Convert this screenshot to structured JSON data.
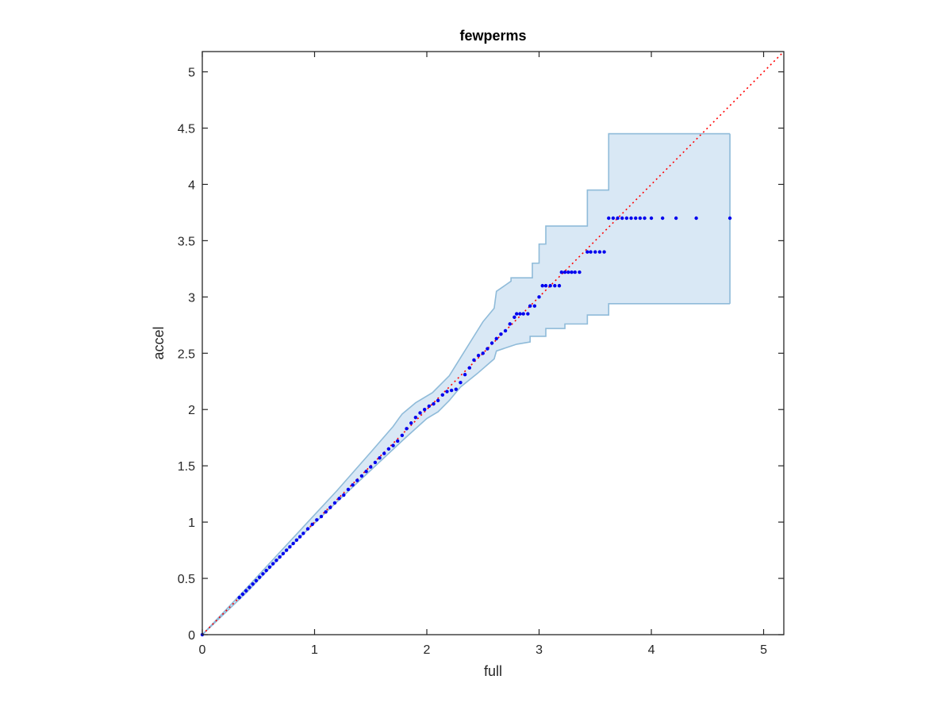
{
  "chart_data": {
    "type": "scatter",
    "title": "fewperms",
    "xlabel": "full",
    "ylabel": "accel",
    "xlim": [
      0,
      5.18
    ],
    "ylim": [
      0,
      5.18
    ],
    "xticks": [
      0,
      1,
      2,
      3,
      4,
      5
    ],
    "yticks": [
      0,
      0.5,
      1,
      1.5,
      2,
      2.5,
      3,
      3.5,
      4,
      4.5,
      5
    ],
    "x_tick_labels": [
      "0",
      "1",
      "2",
      "3",
      "4",
      "5"
    ],
    "y_tick_labels": [
      "0",
      "0.5",
      "1",
      "1.5",
      "2",
      "2.5",
      "3",
      "3.5",
      "4",
      "4.5",
      "5"
    ],
    "grid": false,
    "reference_line": {
      "from": [
        0,
        0
      ],
      "to": [
        5.18,
        5.18
      ],
      "style": "dotted",
      "color": "#ff0000"
    },
    "band": {
      "color": "#d9e8f5",
      "edge_color": "#8fbbd9",
      "upper": [
        [
          0,
          0
        ],
        [
          0.4,
          0.42
        ],
        [
          0.8,
          0.85
        ],
        [
          1.2,
          1.28
        ],
        [
          1.5,
          1.62
        ],
        [
          1.7,
          1.85
        ],
        [
          1.75,
          1.92
        ],
        [
          1.78,
          1.96
        ],
        [
          1.9,
          2.06
        ],
        [
          2.05,
          2.15
        ],
        [
          2.2,
          2.3
        ],
        [
          2.3,
          2.46
        ],
        [
          2.4,
          2.62
        ],
        [
          2.5,
          2.78
        ],
        [
          2.6,
          2.9
        ],
        [
          2.62,
          3.05
        ],
        [
          2.75,
          3.14
        ],
        [
          2.75,
          3.17
        ],
        [
          2.94,
          3.17
        ],
        [
          2.94,
          3.3
        ],
        [
          3.0,
          3.3
        ],
        [
          3.0,
          3.47
        ],
        [
          3.06,
          3.47
        ],
        [
          3.06,
          3.63
        ],
        [
          3.43,
          3.63
        ],
        [
          3.43,
          3.95
        ],
        [
          3.62,
          3.95
        ],
        [
          3.62,
          4.45
        ],
        [
          4.7,
          4.45
        ]
      ],
      "lower": [
        [
          0,
          0
        ],
        [
          0.4,
          0.38
        ],
        [
          0.8,
          0.8
        ],
        [
          1.2,
          1.18
        ],
        [
          1.5,
          1.46
        ],
        [
          1.8,
          1.74
        ],
        [
          2.0,
          1.92
        ],
        [
          2.1,
          1.98
        ],
        [
          2.2,
          2.08
        ],
        [
          2.3,
          2.2
        ],
        [
          2.45,
          2.32
        ],
        [
          2.6,
          2.45
        ],
        [
          2.62,
          2.52
        ],
        [
          2.8,
          2.58
        ],
        [
          2.92,
          2.6
        ],
        [
          2.92,
          2.65
        ],
        [
          3.06,
          2.65
        ],
        [
          3.06,
          2.72
        ],
        [
          3.23,
          2.72
        ],
        [
          3.23,
          2.76
        ],
        [
          3.43,
          2.76
        ],
        [
          3.43,
          2.84
        ],
        [
          3.62,
          2.84
        ],
        [
          3.62,
          2.94
        ],
        [
          4.7,
          2.94
        ]
      ]
    },
    "series": [
      {
        "color": "#0000ee",
        "x": [
          0.0,
          0.33,
          0.36,
          0.39,
          0.42,
          0.45,
          0.48,
          0.51,
          0.54,
          0.57,
          0.6,
          0.63,
          0.66,
          0.69,
          0.72,
          0.75,
          0.78,
          0.81,
          0.84,
          0.87,
          0.9,
          0.94,
          0.98,
          1.02,
          1.06,
          1.1,
          1.14,
          1.18,
          1.22,
          1.26,
          1.3,
          1.34,
          1.38,
          1.42,
          1.46,
          1.5,
          1.54,
          1.58,
          1.62,
          1.66,
          1.7,
          1.74,
          1.78,
          1.82,
          1.86,
          1.9,
          1.94,
          1.98,
          2.02,
          2.06,
          2.1,
          2.14,
          2.18,
          2.22,
          2.26,
          2.3,
          2.34,
          2.38,
          2.42,
          2.46,
          2.5,
          2.54,
          2.58,
          2.62,
          2.66,
          2.7,
          2.74,
          2.78,
          2.8,
          2.83,
          2.86,
          2.9,
          2.92,
          2.96,
          3.0,
          3.03,
          3.06,
          3.1,
          3.14,
          3.18,
          3.2,
          3.23,
          3.26,
          3.29,
          3.32,
          3.36,
          3.43,
          3.46,
          3.5,
          3.54,
          3.58,
          3.62,
          3.66,
          3.7,
          3.74,
          3.78,
          3.82,
          3.86,
          3.9,
          3.94,
          4.0,
          4.1,
          4.22,
          4.4,
          4.7
        ],
        "y": [
          0.0,
          0.33,
          0.36,
          0.39,
          0.42,
          0.45,
          0.48,
          0.51,
          0.54,
          0.57,
          0.6,
          0.63,
          0.66,
          0.69,
          0.72,
          0.75,
          0.78,
          0.81,
          0.84,
          0.87,
          0.9,
          0.94,
          0.98,
          1.02,
          1.05,
          1.09,
          1.13,
          1.17,
          1.21,
          1.24,
          1.29,
          1.33,
          1.37,
          1.41,
          1.45,
          1.49,
          1.53,
          1.57,
          1.61,
          1.65,
          1.68,
          1.72,
          1.77,
          1.83,
          1.88,
          1.93,
          1.97,
          2.0,
          2.03,
          2.05,
          2.08,
          2.13,
          2.16,
          2.17,
          2.18,
          2.24,
          2.31,
          2.37,
          2.44,
          2.48,
          2.5,
          2.54,
          2.59,
          2.63,
          2.67,
          2.7,
          2.76,
          2.82,
          2.85,
          2.85,
          2.85,
          2.85,
          2.92,
          2.92,
          3.0,
          3.1,
          3.1,
          3.1,
          3.1,
          3.1,
          3.22,
          3.22,
          3.22,
          3.22,
          3.22,
          3.22,
          3.4,
          3.4,
          3.4,
          3.4,
          3.4,
          3.7,
          3.7,
          3.7,
          3.7,
          3.7,
          3.7,
          3.7,
          3.7,
          3.7,
          3.7,
          3.7,
          3.7,
          3.7,
          3.7
        ]
      }
    ]
  }
}
